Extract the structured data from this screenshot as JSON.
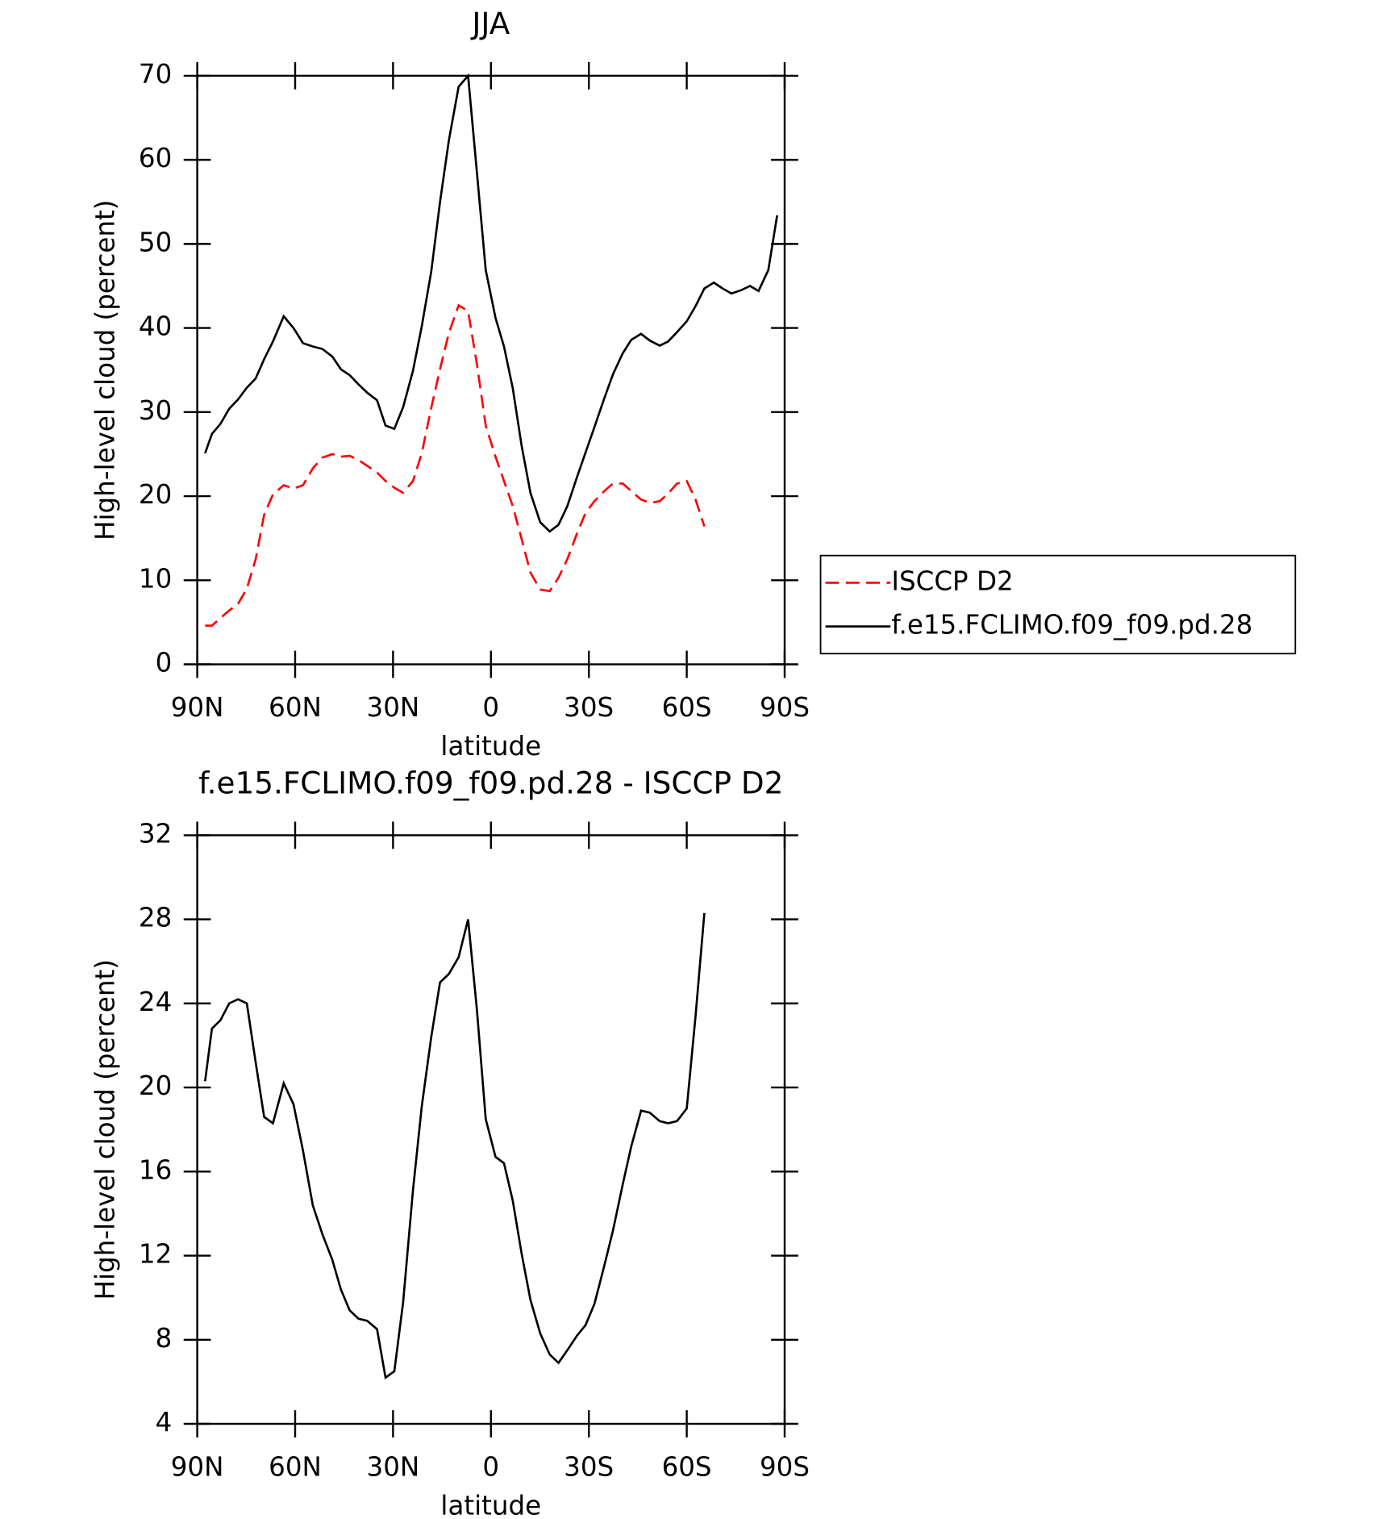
{
  "chart_data": [
    {
      "type": "line",
      "title": "JJA",
      "xlabel": "latitude",
      "ylabel": "High-level cloud (percent)",
      "x": [
        87.6,
        85.5,
        82.9,
        80.2,
        77.5,
        74.8,
        72.1,
        69.5,
        66.8,
        63.5,
        60.5,
        57.6,
        54.6,
        51.6,
        48.6,
        46.0,
        43.3,
        40.6,
        37.9,
        34.9,
        32.3,
        29.6,
        26.9,
        23.9,
        21.2,
        18.3,
        15.6,
        12.9,
        9.9,
        7.0,
        4.3,
        1.6,
        -1.4,
        -4.0,
        -6.7,
        -9.4,
        -12.1,
        -15.1,
        -18.0,
        -20.7,
        -23.4,
        -26.4,
        -29.0,
        -31.7,
        -34.7,
        -37.4,
        -40.4,
        -43.0,
        -46.0,
        -48.7,
        -51.7,
        -54.3,
        -57.0,
        -60.0,
        -62.7,
        -65.4,
        -68.3,
        -71.0,
        -73.7,
        -76.7,
        -79.4,
        -82.0,
        -85.0,
        -87.7
      ],
      "series": [
        {
          "name": "ISCCP D2",
          "color": "#ff0000",
          "dash": true,
          "values": [
            4.6,
            4.6,
            5.5,
            6.4,
            7.2,
            9.0,
            12.5,
            17.8,
            20.2,
            21.3,
            20.9,
            21.3,
            23.3,
            24.6,
            25.0,
            24.7,
            24.8,
            24.3,
            23.6,
            22.8,
            21.8,
            21.0,
            20.4,
            21.8,
            25.1,
            30.5,
            35.1,
            39.4,
            42.7,
            42.0,
            35.7,
            28.4,
            24.7,
            21.8,
            18.8,
            14.9,
            10.9,
            8.9,
            8.7,
            10.3,
            12.5,
            15.6,
            18.0,
            19.4,
            20.6,
            21.5,
            21.5,
            20.6,
            19.6,
            19.2,
            19.4,
            20.3,
            21.5,
            21.8,
            19.6,
            16.4,
            null,
            null,
            null,
            null,
            null,
            null,
            null,
            null
          ]
        },
        {
          "name": "f.e15.FCLIMO.f09_f09.pd.28",
          "color": "#000000",
          "dash": false,
          "values": [
            25.1,
            27.4,
            28.6,
            30.4,
            31.5,
            32.9,
            34.0,
            36.3,
            38.4,
            41.4,
            40.0,
            38.2,
            37.8,
            37.5,
            36.6,
            35.1,
            34.4,
            33.3,
            32.3,
            31.4,
            28.4,
            28.0,
            30.6,
            34.9,
            40.2,
            46.7,
            55.0,
            62.3,
            68.7,
            70.0,
            58.5,
            46.9,
            41.2,
            37.8,
            32.8,
            26.0,
            20.4,
            16.9,
            15.8,
            16.6,
            18.8,
            22.3,
            25.2,
            28.2,
            31.6,
            34.5,
            37.0,
            38.6,
            39.3,
            38.5,
            37.9,
            38.4,
            39.5,
            40.8,
            42.6,
            44.7,
            45.4,
            44.7,
            44.1,
            44.5,
            45.0,
            44.4,
            46.9,
            53.4
          ]
        }
      ],
      "xlim": [
        90,
        -90
      ],
      "xticks": [
        {
          "value": 90,
          "label": "90N"
        },
        {
          "value": 60,
          "label": "60N"
        },
        {
          "value": 30,
          "label": "30N"
        },
        0,
        {
          "value": -30,
          "label": "30S"
        },
        {
          "value": -60,
          "label": "60S"
        },
        {
          "value": -90,
          "label": "90S"
        }
      ],
      "ylim": [
        0,
        70
      ],
      "yticks": [
        0,
        10,
        20,
        30,
        40,
        50,
        60,
        70
      ],
      "legend": "right"
    },
    {
      "type": "line",
      "title": "f.e15.FCLIMO.f09_f09.pd.28 - ISCCP D2",
      "xlabel": "latitude",
      "ylabel": "High-level cloud (percent)",
      "x": [
        87.6,
        85.5,
        82.9,
        80.2,
        77.5,
        74.8,
        72.1,
        69.5,
        66.8,
        63.5,
        60.5,
        57.6,
        54.6,
        51.6,
        48.6,
        46.0,
        43.3,
        40.6,
        37.9,
        34.9,
        32.3,
        29.6,
        26.9,
        23.9,
        21.2,
        18.3,
        15.6,
        12.9,
        9.9,
        7.0,
        4.3,
        1.6,
        -1.4,
        -4.0,
        -6.7,
        -9.4,
        -12.1,
        -15.1,
        -18.0,
        -20.7,
        -23.4,
        -26.4,
        -29.0,
        -31.7,
        -34.7,
        -37.4,
        -40.4,
        -43.0,
        -46.0,
        -48.7,
        -51.7,
        -54.3,
        -57.0,
        -60.0,
        -62.7,
        -65.4
      ],
      "values": [
        20.3,
        22.8,
        23.2,
        24.0,
        24.2,
        24.0,
        21.2,
        18.6,
        18.3,
        20.2,
        19.2,
        17.0,
        14.4,
        13.0,
        11.8,
        10.4,
        9.4,
        9.0,
        8.9,
        8.5,
        6.2,
        6.5,
        9.8,
        15.1,
        19.1,
        22.4,
        25.0,
        25.4,
        26.2,
        28.0,
        23.7,
        18.5,
        16.7,
        16.4,
        14.6,
        12.1,
        9.9,
        8.3,
        7.3,
        6.9,
        7.5,
        8.2,
        8.7,
        9.7,
        11.5,
        13.2,
        15.4,
        17.2,
        18.9,
        18.8,
        18.4,
        18.3,
        18.4,
        19.0,
        23.4,
        28.3
      ],
      "color": "#000000",
      "xlim": [
        90,
        -90
      ],
      "xticks": [
        {
          "value": 90,
          "label": "90N"
        },
        {
          "value": 60,
          "label": "60N"
        },
        {
          "value": 30,
          "label": "30N"
        },
        0,
        {
          "value": -30,
          "label": "30S"
        },
        {
          "value": -60,
          "label": "60S"
        },
        {
          "value": -90,
          "label": "90S"
        }
      ],
      "ylim": [
        4,
        32
      ],
      "yticks": [
        4,
        8,
        12,
        16,
        20,
        24,
        28,
        32
      ]
    }
  ]
}
